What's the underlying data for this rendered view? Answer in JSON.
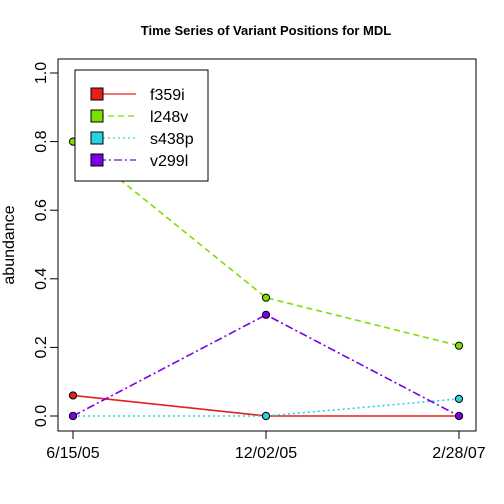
{
  "chart_data": {
    "type": "line",
    "title": "Time Series of Variant Positions for MDL",
    "xlabel": "",
    "ylabel": "abundance",
    "categories": [
      "6/15/05",
      "12/02/05",
      "2/28/07"
    ],
    "ylim": [
      0,
      1
    ],
    "yticks": [
      "0.0",
      "0.2",
      "0.4",
      "0.6",
      "0.8",
      "1.0"
    ],
    "legend_position": "top-left",
    "series": [
      {
        "name": "f359i",
        "values": [
          0.06,
          0.0,
          0.0
        ],
        "color": "#e61e1e",
        "dash": ""
      },
      {
        "name": "l248v",
        "values": [
          0.8,
          0.345,
          0.205
        ],
        "color": "#7be000",
        "dash": "6,4"
      },
      {
        "name": "s438p",
        "values": [
          0.0,
          0.0,
          0.05
        ],
        "color": "#27d3e0",
        "dash": "2,3"
      },
      {
        "name": "v299l",
        "values": [
          0.0,
          0.295,
          0.0
        ],
        "color": "#7a00e6",
        "dash": "8,3,2,3"
      }
    ]
  }
}
